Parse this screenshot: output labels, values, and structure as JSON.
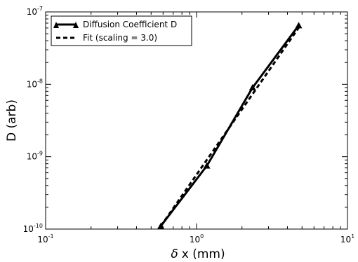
{
  "chart_data": {
    "type": "line",
    "title": "",
    "xlabel": "x (mm)",
    "xlabel_symbol": "δ",
    "ylabel": "D (arb)",
    "x_scale": "log",
    "y_scale": "log",
    "xlim": [
      0.1,
      10
    ],
    "ylim": [
      1e-10,
      1e-07
    ],
    "grid": false,
    "legend_position": "top-left",
    "x_ticks": [
      {
        "base": "10",
        "exp": "-1",
        "value": 0.1
      },
      {
        "base": "10",
        "exp": "0",
        "value": 1
      },
      {
        "base": "10",
        "exp": "1",
        "value": 10
      }
    ],
    "y_ticks": [
      {
        "base": "10",
        "exp": "-10",
        "value": 1e-10
      },
      {
        "base": "10",
        "exp": "-9",
        "value": 1e-09
      },
      {
        "base": "10",
        "exp": "-8",
        "value": 1e-08
      },
      {
        "base": "10",
        "exp": "-7",
        "value": 1e-07
      }
    ],
    "series": [
      {
        "name": "Diffusion Coefficient D",
        "style": "solid",
        "marker": "triangle",
        "color": "#000000",
        "x": [
          0.58,
          1.17,
          2.35,
          4.75
        ],
        "y": [
          1.1e-10,
          7.5e-10,
          9e-09,
          6.5e-08
        ]
      },
      {
        "name": "Fit (scaling = 3.0)",
        "style": "dashed",
        "marker": "none",
        "color": "#000000",
        "x": [
          0.58,
          4.75
        ],
        "y": [
          1.1e-10,
          6.04e-08
        ]
      }
    ]
  }
}
